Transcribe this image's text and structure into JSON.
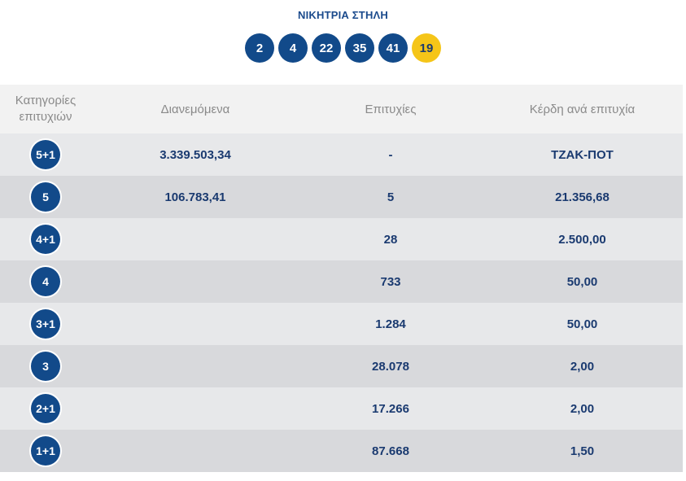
{
  "title": "ΝΙΚΗΤΡΙΑ ΣΤΗΛΗ",
  "numbers": [
    "2",
    "4",
    "22",
    "35",
    "41"
  ],
  "joker": "19",
  "colors": {
    "ball": "#124a8a",
    "joker": "#f5c518",
    "text": "#1a3a70"
  },
  "table": {
    "headers": {
      "category_line1": "Κατηγορίες",
      "category_line2": "επιτυχιών",
      "distributed": "Διανεμόμενα",
      "winners": "Επιτυχίες",
      "prize": "Κέρδη ανά επιτυχία"
    },
    "rows": [
      {
        "category": "5+1",
        "distributed": "3.339.503,34",
        "winners": "-",
        "prize": "ΤΖΑΚ-ΠΟΤ"
      },
      {
        "category": "5",
        "distributed": "106.783,41",
        "winners": "5",
        "prize": "21.356,68"
      },
      {
        "category": "4+1",
        "distributed": "",
        "winners": "28",
        "prize": "2.500,00"
      },
      {
        "category": "4",
        "distributed": "",
        "winners": "733",
        "prize": "50,00"
      },
      {
        "category": "3+1",
        "distributed": "",
        "winners": "1.284",
        "prize": "50,00"
      },
      {
        "category": "3",
        "distributed": "",
        "winners": "28.078",
        "prize": "2,00"
      },
      {
        "category": "2+1",
        "distributed": "",
        "winners": "17.266",
        "prize": "2,00"
      },
      {
        "category": "1+1",
        "distributed": "",
        "winners": "87.668",
        "prize": "1,50"
      }
    ]
  }
}
